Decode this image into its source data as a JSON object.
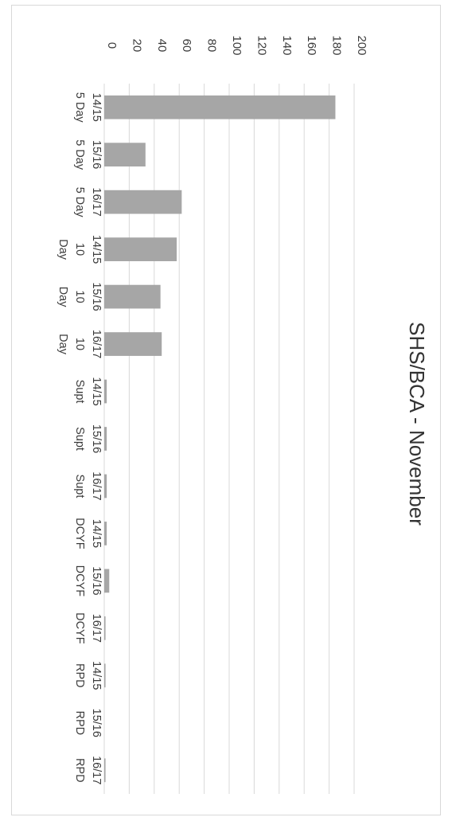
{
  "chart_data": {
    "type": "bar",
    "title": "SHS/BCA - November",
    "xlabel": "",
    "ylabel": "",
    "ylim": [
      0,
      200
    ],
    "yticks": [
      0,
      20,
      40,
      60,
      80,
      100,
      120,
      140,
      160,
      180,
      200
    ],
    "grid": true,
    "legend": "none",
    "orientation": "rotated-90-clockwise",
    "categories": [
      "14/15 5 Day",
      "15/16 5 Day",
      "16/17 5 Day",
      "14/15 10 Day",
      "15/16 10 Day",
      "16/17 10 Day",
      "14/15 Supt",
      "15/16 Supt",
      "16/17 Supt",
      "14/15 DCYF",
      "15/16 DCYF",
      "16/17 DCYF",
      "14/15 RPD",
      "15/16 RPD",
      "16/17 RPD"
    ],
    "category_lines": [
      [
        "14/15",
        "5 Day"
      ],
      [
        "15/16",
        "5 Day"
      ],
      [
        "16/17",
        "5 Day"
      ],
      [
        "14/15",
        "10",
        "Day"
      ],
      [
        "15/16",
        "10",
        "Day"
      ],
      [
        "16/17",
        "10",
        "Day"
      ],
      [
        "14/15",
        "Supt"
      ],
      [
        "15/16",
        "Supt"
      ],
      [
        "16/17",
        "Supt"
      ],
      [
        "14/15",
        "DCYF"
      ],
      [
        "15/16",
        "DCYF"
      ],
      [
        "16/17",
        "DCYF"
      ],
      [
        "14/15",
        "RPD"
      ],
      [
        "15/16",
        "RPD"
      ],
      [
        "16/17",
        "RPD"
      ]
    ],
    "values": [
      185,
      33,
      62,
      58,
      45,
      46,
      2,
      2,
      2,
      2,
      4,
      1,
      1,
      0,
      1
    ],
    "colors": {
      "bar": "#a6a6a6",
      "grid": "#d9d9d9",
      "text": "#3a3a3a",
      "frame": "#d8d8d8"
    }
  }
}
